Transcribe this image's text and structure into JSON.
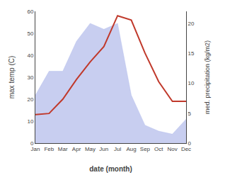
{
  "chart_data": {
    "type": "line",
    "categories": [
      "Jan",
      "Feb",
      "Mar",
      "Apr",
      "May",
      "Jun",
      "Jul",
      "Aug",
      "Sep",
      "Oct",
      "Nov",
      "Dec"
    ],
    "xlabel": "date (month)",
    "ylabel": "max temp (C)",
    "y2label": "med. precipitation (kg/m2)",
    "series": [
      {
        "type": "area",
        "axis": "y2",
        "color": "#aab4e8",
        "values": [
          8,
          12,
          12,
          17,
          20,
          19,
          20,
          8,
          3,
          2,
          1.5,
          4
        ]
      },
      {
        "type": "line",
        "color": "#c0392b",
        "values": [
          13,
          13.5,
          20,
          29,
          37,
          44,
          58,
          56,
          41,
          28,
          19,
          19
        ]
      }
    ],
    "ylim": [
      0,
      60
    ],
    "yticks": [
      0,
      10,
      20,
      30,
      40,
      50,
      60
    ],
    "y2lim": [
      0,
      22
    ],
    "y2ticks": [
      0,
      5,
      10,
      15,
      20
    ],
    "grid": false
  }
}
